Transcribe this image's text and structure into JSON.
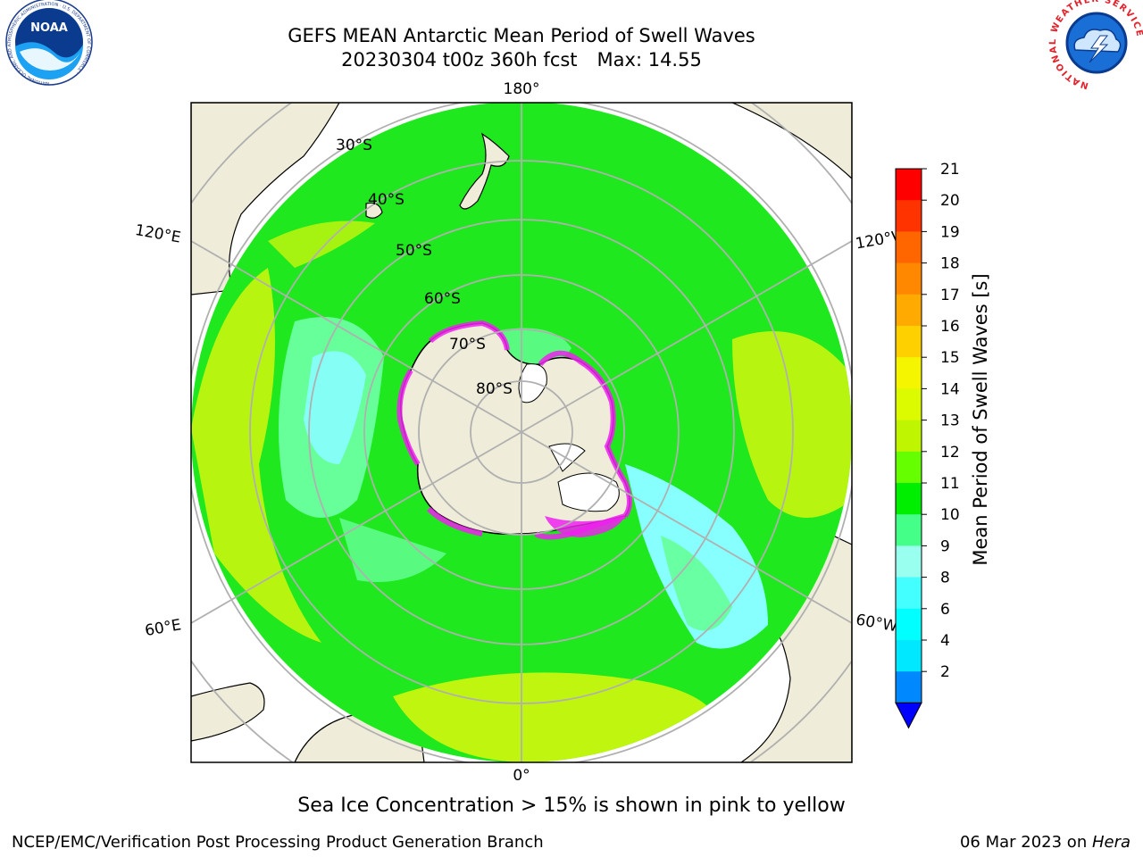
{
  "title": {
    "line1": "GEFS MEAN Antarctic Mean Period of Swell Waves",
    "line2": "20230304 t00z 360h fcst",
    "max": "Max: 14.55"
  },
  "map": {
    "projection": "south-polar-stereographic",
    "longitude_labels": {
      "top": "180°",
      "bottom": "0°",
      "left_upper": "120°E",
      "left_lower": "60°E",
      "right_upper": "120°W",
      "right_lower": "60°W"
    },
    "latitude_labels": [
      "30°S",
      "40°S",
      "50°S",
      "60°S",
      "70°S",
      "80°S"
    ],
    "colors": {
      "land": "#efedd9",
      "ice_land": "#ffffff",
      "sea_ice": "#f020f0",
      "ocean_main": "#1fe81f",
      "ocean_warm": "#c8f50e",
      "ocean_cool": "#66ff99",
      "ocean_cyan": "#88ffff",
      "grid": "#b0b0b0"
    }
  },
  "colorbar": {
    "label": "Mean Period of Swell Waves [s]",
    "ticks": [
      "21",
      "20",
      "19",
      "18",
      "17",
      "16",
      "15",
      "14",
      "13",
      "12",
      "11",
      "10",
      "9",
      "8",
      "6",
      "4",
      "2"
    ],
    "colors": [
      "#ff0000",
      "#ff3300",
      "#ff6600",
      "#ff8800",
      "#ffaa00",
      "#ffd000",
      "#f5f500",
      "#ddfb00",
      "#c0f500",
      "#66ff00",
      "#00ee00",
      "#44ff88",
      "#99ffee",
      "#44ffff",
      "#00ffff",
      "#00e8ff",
      "#0088ff"
    ],
    "under_color": "#0000ff"
  },
  "note": "Sea Ice Concentration > 15% is shown in pink to yellow",
  "footer": {
    "left": "NCEP/EMC/Verification Post Processing Product Generation Branch",
    "right_date": "06 Mar 2023 on ",
    "right_machine": "Hera"
  },
  "logos": {
    "left": "NOAA",
    "left_ring": "NATIONAL OCEANIC AND ATMOSPHERIC ADMINISTRATION · U.S. DEPARTMENT OF COMMERCE ·",
    "right_ring": "NATIONAL WEATHER SERVICE"
  }
}
